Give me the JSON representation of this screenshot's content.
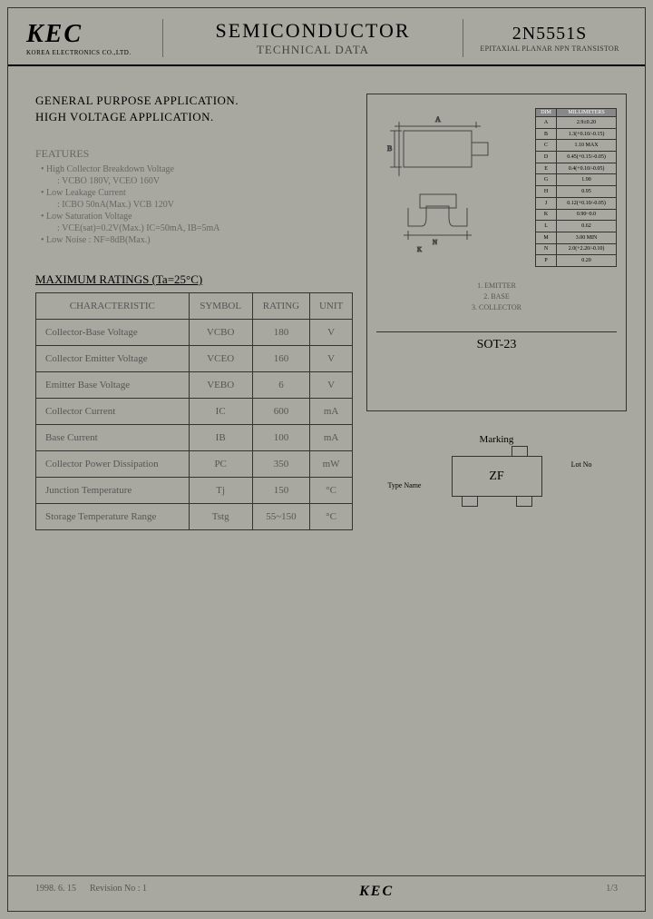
{
  "header": {
    "logo": "KEC",
    "logo_sub": "KOREA ELECTRONICS CO.,LTD.",
    "title_main": "SEMICONDUCTOR",
    "title_sub": "TECHNICAL DATA",
    "part_no": "2N5551S",
    "part_sub": "EPITAXIAL PLANAR NPN TRANSISTOR"
  },
  "application": {
    "line1": "GENERAL PURPOSE APPLICATION.",
    "line2": "HIGH VOLTAGE APPLICATION."
  },
  "features": {
    "title": "FEATURES",
    "items": [
      {
        "main": "• High Collector Breakdown Voltage",
        "sub": ": VCBO 180V, VCEO 160V"
      },
      {
        "main": "• Low Leakage Current",
        "sub": ": ICBO 50nA(Max.) VCB 120V"
      },
      {
        "main": "• Low Saturation Voltage",
        "sub": ": VCE(sat)=0.2V(Max.) IC=50mA, IB=5mA"
      },
      {
        "main": "• Low Noise : NF=8dB(Max.)",
        "sub": ""
      }
    ]
  },
  "ratings": {
    "title": "MAXIMUM RATINGS (Ta=25°C)",
    "columns": [
      "CHARACTERISTIC",
      "SYMBOL",
      "RATING",
      "UNIT"
    ],
    "rows": [
      [
        "Collector-Base Voltage",
        "VCBO",
        "180",
        "V"
      ],
      [
        "Collector Emitter Voltage",
        "VCEO",
        "160",
        "V"
      ],
      [
        "Emitter Base Voltage",
        "VEBO",
        "6",
        "V"
      ],
      [
        "Collector Current",
        "IC",
        "600",
        "mA"
      ],
      [
        "Base Current",
        "IB",
        "100",
        "mA"
      ],
      [
        "Collector Power Dissipation",
        "PC",
        "350",
        "mW"
      ],
      [
        "Junction Temperature",
        "Tj",
        "150",
        "°C"
      ],
      [
        "Storage Temperature Range",
        "Tstg",
        "55~150",
        "°C"
      ]
    ]
  },
  "package": {
    "name": "SOT-23",
    "dim_header": [
      "DIM",
      "MILLIMETERS"
    ],
    "dims": [
      [
        "A",
        "2.9±0.20"
      ],
      [
        "B",
        "1.3(+0.10/-0.15)"
      ],
      [
        "C",
        "1.10 MAX"
      ],
      [
        "D",
        "0.45(+0.15/-0.05)"
      ],
      [
        "E",
        "0.4(+0.10/-0.05)"
      ],
      [
        "G",
        "1.90"
      ],
      [
        "H",
        "0.95"
      ],
      [
        "J",
        "0.12(+0.10/-0.05)"
      ],
      [
        "K",
        "0.90~0.0"
      ],
      [
        "L",
        "0.62"
      ],
      [
        "M",
        "3.00 MIN"
      ],
      [
        "N",
        "2.0(+2.20/-0.10)"
      ],
      [
        "P",
        "0.20"
      ]
    ],
    "pins": {
      "p1": "1. EMITTER",
      "p2": "2. BASE",
      "p3": "3. COLLECTOR"
    }
  },
  "marking": {
    "title": "Marking",
    "code": "ZF",
    "label_left": "Type Name",
    "label_right": "Lot No"
  },
  "footer": {
    "date": "1998. 6. 15",
    "revision": "Revision No : 1",
    "logo": "KEC",
    "page": "1/3"
  },
  "colors": {
    "bg": "#a8a8a0",
    "border": "#333333",
    "text_faded": "#666666"
  }
}
